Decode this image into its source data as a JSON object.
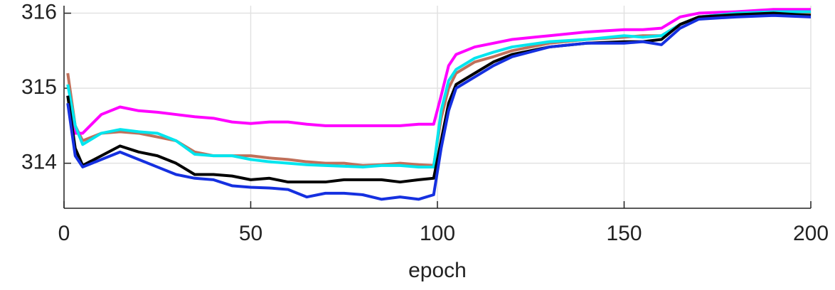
{
  "chart_data": {
    "type": "line",
    "xlabel": "epoch",
    "x": [
      1,
      3,
      5,
      10,
      15,
      20,
      25,
      30,
      35,
      40,
      45,
      50,
      55,
      60,
      65,
      70,
      75,
      80,
      85,
      90,
      95,
      99,
      101,
      103,
      105,
      110,
      115,
      120,
      130,
      140,
      150,
      155,
      160,
      165,
      170,
      180,
      190,
      200
    ],
    "series": [
      {
        "color": "#c0705a",
        "values": [
          315.2,
          314.5,
          314.3,
          314.4,
          314.42,
          314.4,
          314.35,
          314.3,
          314.15,
          314.1,
          314.1,
          314.1,
          314.07,
          314.05,
          314.02,
          314.0,
          314.0,
          313.97,
          313.98,
          314.0,
          313.98,
          313.97,
          314.6,
          315.0,
          315.2,
          315.35,
          315.42,
          315.5,
          315.6,
          315.65,
          315.68,
          315.7,
          315.7,
          315.85,
          315.95,
          316.0,
          316.0,
          316.0
        ]
      },
      {
        "color": "#ff00ff",
        "values": [
          314.9,
          314.4,
          314.4,
          314.65,
          314.75,
          314.7,
          314.68,
          314.65,
          314.62,
          314.6,
          314.55,
          314.53,
          314.55,
          314.55,
          314.52,
          314.5,
          314.5,
          314.5,
          314.5,
          314.5,
          314.52,
          314.52,
          314.9,
          315.3,
          315.45,
          315.55,
          315.6,
          315.65,
          315.7,
          315.75,
          315.78,
          315.78,
          315.8,
          315.95,
          316.0,
          316.02,
          316.05,
          316.05
        ]
      },
      {
        "color": "#00e5ee",
        "values": [
          315.05,
          314.5,
          314.25,
          314.4,
          314.45,
          314.42,
          314.4,
          314.3,
          314.12,
          314.1,
          314.1,
          314.05,
          314.02,
          314.0,
          313.98,
          313.97,
          313.96,
          313.95,
          313.97,
          313.97,
          313.95,
          313.95,
          314.7,
          315.1,
          315.25,
          315.4,
          315.48,
          315.55,
          315.62,
          315.65,
          315.7,
          315.68,
          315.7,
          315.85,
          315.95,
          316.0,
          316.02,
          316.02
        ]
      },
      {
        "color": "#000000",
        "values": [
          314.9,
          314.2,
          313.97,
          314.1,
          314.23,
          314.15,
          314.1,
          314.0,
          313.85,
          313.85,
          313.83,
          313.78,
          313.8,
          313.75,
          313.75,
          313.75,
          313.78,
          313.78,
          313.78,
          313.75,
          313.78,
          313.8,
          314.3,
          314.8,
          315.05,
          315.2,
          315.35,
          315.45,
          315.55,
          315.6,
          315.62,
          315.62,
          315.65,
          315.85,
          315.95,
          315.98,
          316.0,
          315.97
        ]
      },
      {
        "color": "#1530e0",
        "values": [
          314.8,
          314.1,
          313.95,
          314.05,
          314.15,
          314.05,
          313.95,
          313.85,
          313.8,
          313.78,
          313.7,
          313.68,
          313.67,
          313.65,
          313.55,
          313.6,
          313.6,
          313.58,
          313.52,
          313.55,
          313.52,
          313.58,
          314.2,
          314.7,
          315.0,
          315.15,
          315.3,
          315.42,
          315.55,
          315.6,
          315.6,
          315.62,
          315.58,
          315.8,
          315.92,
          315.95,
          315.97,
          315.95
        ]
      }
    ],
    "xlim": [
      0,
      200
    ],
    "ylim": [
      313.4,
      316.1
    ],
    "xticks": [
      0,
      50,
      100,
      150,
      200
    ],
    "yticks": [
      314,
      315,
      316
    ],
    "grid": true
  }
}
